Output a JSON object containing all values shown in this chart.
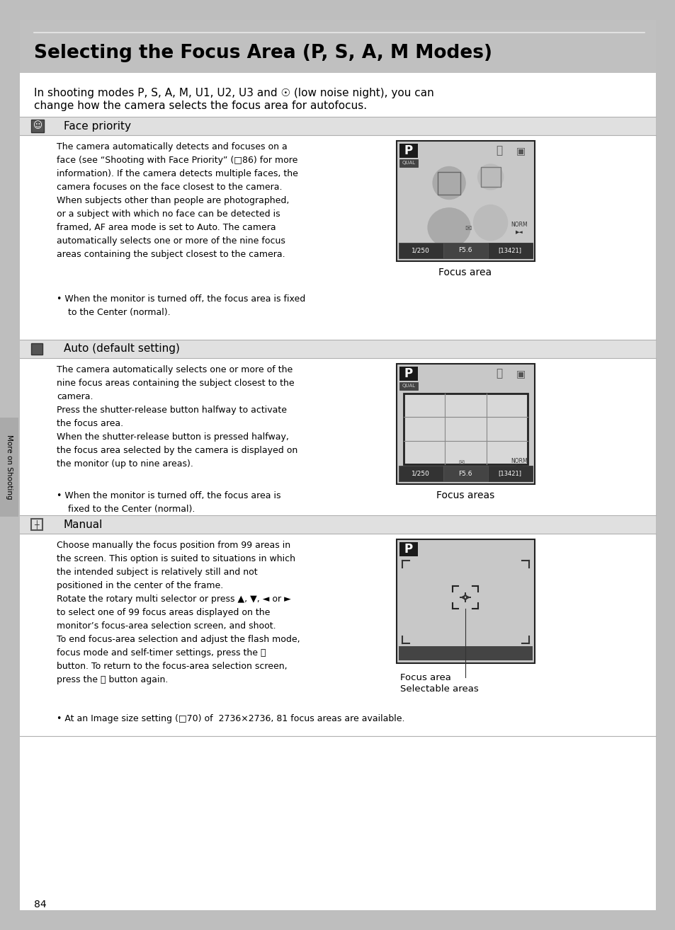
{
  "page_bg": "#bebebe",
  "content_bg": "#ffffff",
  "header_bg": "#bebebe",
  "section_header_bg": "#e0e0e0",
  "title": "Selecting the Focus Area (P, S, A, M Modes)",
  "page_number": "84",
  "sidebar_text": "More on Shooting",
  "sec1_header": "Face priority",
  "sec2_header": "Auto (default setting)",
  "sec3_header": "Manual",
  "body1": "The camera automatically detects and focuses on a\nface (see “Shooting with Face Priority” (□86) for more\ninformation). If the camera detects multiple faces, the\ncamera focuses on the face closest to the camera.\nWhen subjects other than people are photographed,\nor a subject with which no face can be detected is\nframed, AF area mode is set to Auto. The camera\nautomatically selects one or more of the nine focus\nareas containing the subject closest to the camera.",
  "bullet1": "• When the monitor is turned off, the focus area is fixed\n    to the Center (normal).",
  "caption1": "Focus area",
  "body2": "The camera automatically selects one or more of the\nnine focus areas containing the subject closest to the\ncamera.\nPress the shutter-release button halfway to activate\nthe focus area.\nWhen the shutter-release button is pressed halfway,\nthe focus area selected by the camera is displayed on\nthe monitor (up to nine areas).",
  "bullet2": "• When the monitor is turned off, the focus area is\n    fixed to the Center (normal).",
  "caption2": "Focus areas",
  "body3": "Choose manually the focus position from 99 areas in\nthe screen. This option is suited to situations in which\nthe intended subject is relatively still and not\npositioned in the center of the frame.\nRotate the rotary multi selector or press ▲, ▼, ◄ or ►\nto select one of 99 focus areas displayed on the\nmonitor’s focus-area selection screen, and shoot.\nTo end focus-area selection and adjust the flash mode,\nfocus mode and self-timer settings, press the ⓪\nbutton. To return to the focus-area selection screen,\npress the ⓪ button again.",
  "bullet3": "• At an Image size setting (□70) of  2736×2736, 81 focus areas are available.",
  "caption3a": "Focus area",
  "caption3b": "Selectable areas"
}
